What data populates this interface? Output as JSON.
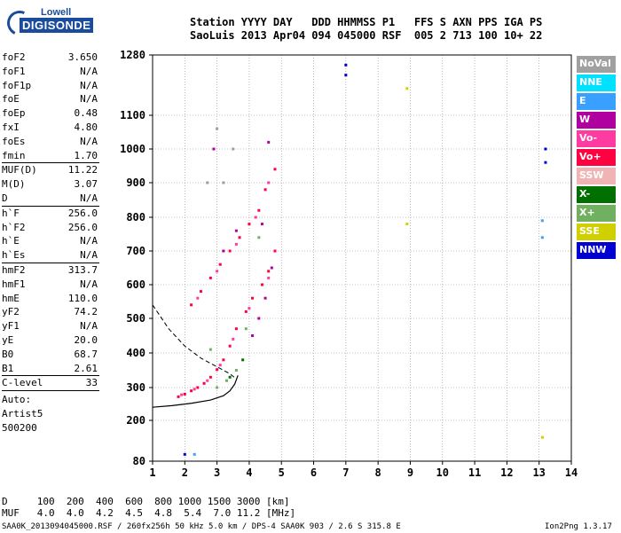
{
  "logo": {
    "brand": "Lowell",
    "product": "DIGISONDE"
  },
  "header": {
    "line1": "Station YYYY DAY   DDD HHMMSS P1   FFS S AXN PPS IGA PS",
    "line2": "SaoLuis 2013 Apr04 094 045000 RSF  005 2 713 100 10+ 22"
  },
  "params_a": [
    {
      "name": "foF2",
      "value": "3.650"
    },
    {
      "name": "foF1",
      "value": "N/A"
    },
    {
      "name": "foF1p",
      "value": "N/A"
    },
    {
      "name": "foE",
      "value": "N/A"
    },
    {
      "name": "foEp",
      "value": "0.48"
    },
    {
      "name": "fxI",
      "value": "4.80"
    },
    {
      "name": "foEs",
      "value": "N/A"
    },
    {
      "name": "fmin",
      "value": "1.70"
    }
  ],
  "params_b": [
    {
      "name": "MUF(D)",
      "value": "11.22"
    },
    {
      "name": "M(D)",
      "value": "3.07"
    },
    {
      "name": "D",
      "value": "N/A"
    }
  ],
  "params_c": [
    {
      "name": "h`F",
      "value": "256.0"
    },
    {
      "name": "h`F2",
      "value": "256.0"
    },
    {
      "name": "h`E",
      "value": "N/A"
    },
    {
      "name": "h`Es",
      "value": "N/A"
    }
  ],
  "params_d": [
    {
      "name": "hmF2",
      "value": "313.7"
    },
    {
      "name": "hmF1",
      "value": "N/A"
    },
    {
      "name": "hmE",
      "value": "110.0"
    },
    {
      "name": "yF2",
      "value": "74.2"
    },
    {
      "name": "yF1",
      "value": "N/A"
    },
    {
      "name": "yE",
      "value": "20.0"
    },
    {
      "name": "B0",
      "value": "68.7"
    },
    {
      "name": "B1",
      "value": "2.61"
    }
  ],
  "clevel": {
    "name": "C-level",
    "value": "33"
  },
  "autoscale": {
    "line1": "Auto:",
    "line2": "Artist5",
    "line3": "500200"
  },
  "legend": [
    {
      "label": "NoVal",
      "color": "#a0a0a0"
    },
    {
      "label": "NNE",
      "color": "#00e0ff"
    },
    {
      "label": "E",
      "color": "#3aa0ff"
    },
    {
      "label": "W",
      "color": "#b000a0"
    },
    {
      "label": "Vo-",
      "color": "#ff3aa0"
    },
    {
      "label": "Vo+",
      "color": "#ff0040"
    },
    {
      "label": "SSW",
      "color": "#f0b4b4"
    },
    {
      "label": "X-",
      "color": "#007000"
    },
    {
      "label": "X+",
      "color": "#70b060"
    },
    {
      "label": "SSE",
      "color": "#d0d000"
    },
    {
      "label": "NNW",
      "color": "#0000d0"
    }
  ],
  "footer": {
    "d_row": "D     100  200  400  600  800 1000 1500 3000 [km]",
    "muf_row": "MUF   4.0  4.0  4.2  4.5  4.8  5.4  7.0 11.2 [MHz]",
    "file_line": "SAA0K_2013094045000.RSF / 260fx256h 50 kHz 5.0 km / DPS-4 SAA0K 903 / 2.6 S 315.8 E",
    "version": "Ion2Png 1.3.17"
  },
  "chart_data": {
    "type": "scatter",
    "xlim": [
      1,
      14
    ],
    "ylim": [
      80,
      1280
    ],
    "x_ticks": [
      1,
      2,
      3,
      4,
      5,
      6,
      7,
      8,
      9,
      10,
      11,
      12,
      13,
      14
    ],
    "x_tick_labels": [
      "1",
      "2",
      "3",
      "4",
      "5",
      "6",
      "7",
      "8",
      "9",
      "10",
      "11",
      "12",
      "13",
      "14"
    ],
    "y_ticks": [
      80,
      200,
      300,
      400,
      500,
      600,
      700,
      800,
      900,
      1000,
      1100,
      1280
    ],
    "y_tick_labels": [
      "80",
      "200",
      "300",
      "400",
      "500",
      "600",
      "700",
      "800",
      "900",
      "1000",
      "1100",
      "1280"
    ],
    "grid": true,
    "series": [
      {
        "name": "Vo+",
        "color": "#ff0040",
        "points": [
          [
            1.8,
            272
          ],
          [
            2.0,
            280
          ],
          [
            2.2,
            290
          ],
          [
            2.4,
            300
          ],
          [
            2.6,
            312
          ],
          [
            2.8,
            330
          ],
          [
            3.0,
            352
          ],
          [
            3.2,
            380
          ],
          [
            3.4,
            420
          ],
          [
            3.6,
            470
          ],
          [
            3.9,
            520
          ],
          [
            4.1,
            560
          ],
          [
            4.4,
            600
          ],
          [
            4.6,
            640
          ],
          [
            4.8,
            700
          ],
          [
            2.2,
            540
          ],
          [
            2.5,
            580
          ],
          [
            2.8,
            620
          ],
          [
            3.1,
            660
          ],
          [
            3.4,
            700
          ],
          [
            3.7,
            740
          ],
          [
            4.0,
            780
          ],
          [
            4.3,
            820
          ],
          [
            4.5,
            880
          ],
          [
            4.8,
            940
          ]
        ]
      },
      {
        "name": "Vo-",
        "color": "#ff3aa0",
        "points": [
          [
            1.9,
            278
          ],
          [
            2.3,
            295
          ],
          [
            2.7,
            320
          ],
          [
            3.1,
            365
          ],
          [
            3.5,
            440
          ],
          [
            4.0,
            530
          ],
          [
            4.6,
            620
          ],
          [
            2.4,
            560
          ],
          [
            3.0,
            640
          ],
          [
            3.6,
            720
          ],
          [
            4.2,
            800
          ],
          [
            4.6,
            900
          ]
        ]
      },
      {
        "name": "W",
        "color": "#b000a0",
        "points": [
          [
            4.1,
            450
          ],
          [
            4.3,
            500
          ],
          [
            4.5,
            560
          ],
          [
            4.7,
            650
          ],
          [
            4.4,
            780
          ],
          [
            4.6,
            1020
          ],
          [
            3.2,
            700
          ],
          [
            3.6,
            760
          ],
          [
            2.9,
            1000
          ]
        ]
      },
      {
        "name": "X+",
        "color": "#70b060",
        "points": [
          [
            3.0,
            300
          ],
          [
            3.3,
            320
          ],
          [
            3.6,
            350
          ],
          [
            2.8,
            410
          ],
          [
            3.9,
            470
          ],
          [
            4.3,
            740
          ]
        ]
      },
      {
        "name": "X-",
        "color": "#007000",
        "points": [
          [
            3.4,
            330
          ],
          [
            3.8,
            380
          ]
        ]
      },
      {
        "name": "SSE",
        "color": "#d0d000",
        "points": [
          [
            8.9,
            1180
          ],
          [
            8.9,
            780
          ],
          [
            13.1,
            150
          ]
        ]
      },
      {
        "name": "NNW",
        "color": "#0000d0",
        "points": [
          [
            7.0,
            1220
          ],
          [
            7.0,
            1250
          ],
          [
            13.2,
            960
          ],
          [
            13.2,
            1000
          ],
          [
            2.0,
            100
          ]
        ]
      },
      {
        "name": "E",
        "color": "#3aa0ff",
        "points": [
          [
            13.1,
            740
          ],
          [
            13.1,
            790
          ],
          [
            2.3,
            100
          ]
        ]
      },
      {
        "name": "NoVal",
        "color": "#a0a0a0",
        "points": [
          [
            3.0,
            1060
          ],
          [
            3.2,
            900
          ],
          [
            3.5,
            1000
          ],
          [
            2.7,
            900
          ]
        ]
      }
    ],
    "profile": {
      "color": "#000000",
      "x": [
        1.0,
        1.6,
        2.2,
        2.8,
        3.2,
        3.4,
        3.55,
        3.65
      ],
      "y": [
        240,
        245,
        252,
        262,
        275,
        290,
        310,
        335
      ]
    },
    "dashed_trace": {
      "color": "#000000",
      "x": [
        1.0,
        1.5,
        2.0,
        2.5,
        3.0,
        3.4,
        3.6
      ],
      "y": [
        540,
        470,
        420,
        385,
        360,
        340,
        325
      ]
    }
  }
}
